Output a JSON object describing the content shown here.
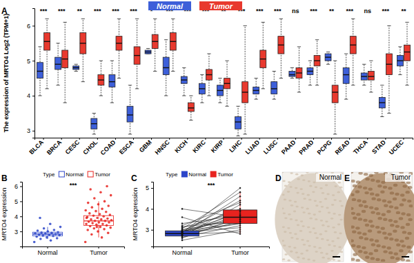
{
  "chart_data": [
    {
      "panel": "A",
      "type": "box",
      "ylabel": "The expression of MRTO4 Log2 (TPM+1)",
      "categories": [
        "BLCA",
        "BRCA",
        "CESC",
        "CHOL",
        "COAD",
        "ESCA",
        "GBM",
        "HNSC",
        "KICH",
        "KIRC",
        "KIRP",
        "LIHC",
        "LUAD",
        "LUSC",
        "PAAD",
        "PRAD",
        "PCPG",
        "READ",
        "THCA",
        "STAD",
        "UCEC"
      ],
      "significance": [
        "***",
        "***",
        "**",
        "***",
        "***",
        "***",
        "*",
        "***",
        "***",
        "***",
        "**",
        "***",
        "***",
        "***",
        "ns",
        "***",
        "**",
        "***",
        "ns",
        "***",
        "**"
      ],
      "line_style": "dashed",
      "legend": "top",
      "series": [
        {
          "name": "Normal",
          "color": "#3d5fd9",
          "values": [
            [
              4.0,
              4.5,
              4.7,
              4.95,
              5.4
            ],
            [
              4.3,
              4.75,
              4.9,
              5.1,
              5.5
            ],
            [
              4.7,
              4.75,
              4.8,
              4.85,
              4.9
            ],
            [
              2.9,
              3.05,
              3.2,
              3.35,
              3.5
            ],
            [
              3.8,
              4.25,
              4.4,
              4.6,
              5.0
            ],
            [
              2.9,
              3.25,
              3.45,
              3.7,
              4.3
            ],
            [
              5.2,
              5.2,
              5.25,
              5.3,
              5.35
            ],
            [
              4.0,
              4.6,
              4.8,
              5.1,
              5.6
            ],
            [
              4.0,
              4.35,
              4.45,
              4.55,
              4.8
            ],
            [
              3.8,
              4.05,
              4.2,
              4.35,
              4.6
            ],
            [
              3.8,
              4.0,
              4.15,
              4.3,
              4.5
            ],
            [
              2.85,
              3.05,
              3.25,
              3.4,
              3.7
            ],
            [
              3.9,
              4.05,
              4.15,
              4.25,
              4.5
            ],
            [
              3.9,
              4.05,
              4.2,
              4.4,
              4.7
            ],
            [
              4.5,
              4.55,
              4.6,
              4.7,
              4.8
            ],
            [
              4.3,
              4.6,
              4.7,
              4.8,
              5.0
            ],
            [
              4.9,
              5.0,
              5.1,
              5.2,
              5.25
            ],
            [
              3.9,
              4.35,
              4.6,
              4.8,
              5.2
            ],
            [
              4.3,
              4.45,
              4.55,
              4.65,
              4.9
            ],
            [
              3.4,
              3.65,
              3.8,
              3.95,
              4.3
            ],
            [
              4.6,
              4.85,
              5.0,
              5.15,
              5.4
            ]
          ]
        },
        {
          "name": "Tumor",
          "color": "#e8392e",
          "values": [
            [
              4.2,
              5.3,
              5.55,
              5.8,
              6.2
            ],
            [
              3.8,
              4.8,
              5.05,
              5.3,
              6.1
            ],
            [
              4.4,
              5.2,
              5.5,
              5.8,
              6.2
            ],
            [
              4.0,
              4.3,
              4.45,
              4.6,
              5.0
            ],
            [
              4.5,
              5.3,
              5.5,
              5.7,
              6.2
            ],
            [
              4.2,
              4.9,
              5.15,
              5.4,
              6.2
            ],
            [
              4.7,
              5.35,
              5.55,
              5.75,
              6.2
            ],
            [
              4.7,
              5.3,
              5.55,
              5.8,
              6.2
            ],
            [
              3.3,
              3.55,
              3.65,
              3.8,
              4.0
            ],
            [
              4.0,
              4.45,
              4.6,
              4.75,
              5.2
            ],
            [
              3.7,
              4.2,
              4.35,
              4.5,
              5.0
            ],
            [
              2.9,
              3.8,
              4.1,
              4.4,
              6.0
            ],
            [
              4.2,
              4.8,
              5.05,
              5.3,
              6.1
            ],
            [
              4.5,
              5.2,
              5.45,
              5.7,
              6.2
            ],
            [
              4.1,
              4.5,
              4.65,
              4.8,
              5.4
            ],
            [
              4.3,
              4.85,
              5.0,
              5.15,
              5.6
            ],
            [
              2.9,
              3.8,
              4.1,
              4.3,
              5.0
            ],
            [
              4.3,
              5.2,
              5.45,
              5.7,
              6.2
            ],
            [
              4.1,
              4.45,
              4.55,
              4.7,
              5.0
            ],
            [
              3.5,
              4.6,
              4.9,
              5.2,
              6.0
            ],
            [
              4.3,
              5.0,
              5.25,
              5.45,
              6.1
            ]
          ]
        }
      ],
      "ylim": [
        2.8,
        6.5
      ],
      "yticks": [
        3,
        4,
        5,
        6
      ]
    },
    {
      "panel": "B",
      "type": "box",
      "ylabel": "MRTO4 expression",
      "legend_title": "Type",
      "legend": "top",
      "categories": [
        "Normal",
        "Tumor"
      ],
      "colors": [
        "#2c45c8",
        "#e8231f"
      ],
      "values": [
        [
          2.5,
          2.7,
          2.82,
          2.95,
          3.3
        ],
        [
          2.6,
          3.4,
          3.7,
          4.05,
          5.0
        ]
      ],
      "points": [
        [
          2.3,
          2.4,
          2.5,
          2.55,
          2.6,
          2.65,
          2.7,
          2.72,
          2.75,
          2.78,
          2.8,
          2.82,
          2.85,
          2.87,
          2.9,
          2.92,
          2.95,
          3.0,
          3.05,
          3.1,
          3.2,
          3.3,
          3.5,
          3.9
        ],
        [
          2.3,
          2.6,
          2.8,
          2.9,
          3.0,
          3.1,
          3.15,
          3.2,
          3.25,
          3.3,
          3.35,
          3.4,
          3.45,
          3.5,
          3.5,
          3.55,
          3.6,
          3.6,
          3.65,
          3.7,
          3.7,
          3.75,
          3.8,
          3.8,
          3.85,
          3.9,
          3.95,
          4.0,
          4.05,
          4.1,
          4.15,
          4.2,
          4.3,
          4.35,
          4.4,
          4.5,
          4.6,
          4.7,
          4.8,
          4.9,
          5.0,
          5.2,
          5.4,
          5.6,
          5.8,
          6.0,
          3.3,
          3.9
        ]
      ],
      "significance": "***",
      "ylim": [
        2.0,
        6.3
      ],
      "yticks": [
        3,
        4,
        5,
        6
      ]
    },
    {
      "panel": "C",
      "type": "paired",
      "ylabel": "MRTO4 expression",
      "legend_title": "Type",
      "legend": "top",
      "categories": [
        "Normal",
        "Tumor"
      ],
      "colors": [
        "#2c45c8",
        "#e8231f"
      ],
      "values": [
        [
          2.5,
          2.7,
          2.82,
          2.95,
          3.2
        ],
        [
          2.8,
          3.3,
          3.6,
          3.95,
          4.8
        ]
      ],
      "points": [
        [
          2.5,
          2.6,
          2.65,
          2.7,
          2.72,
          2.75,
          2.78,
          2.8,
          2.8,
          2.82,
          2.85,
          2.85,
          2.88,
          2.9,
          2.9,
          2.92,
          2.95,
          2.98,
          3.0,
          3.05,
          3.1,
          3.15,
          3.2,
          3.3,
          3.6,
          4.0
        ],
        [
          3.0,
          3.6,
          3.2,
          4.2,
          3.4,
          3.9,
          2.9,
          3.5,
          4.6,
          3.3,
          3.7,
          5.0,
          3.1,
          3.8,
          4.4,
          3.6,
          3.3,
          4.0,
          3.5,
          4.8,
          3.9,
          3.4,
          4.3,
          3.7,
          2.8,
          3.6
        ]
      ],
      "significance": "***",
      "ylim": [
        2.2,
        5.3
      ],
      "yticks": [
        3,
        4,
        5
      ]
    }
  ],
  "images": [
    {
      "panel": "D",
      "label": "Normal"
    },
    {
      "panel": "E",
      "label": "Tumor"
    }
  ]
}
